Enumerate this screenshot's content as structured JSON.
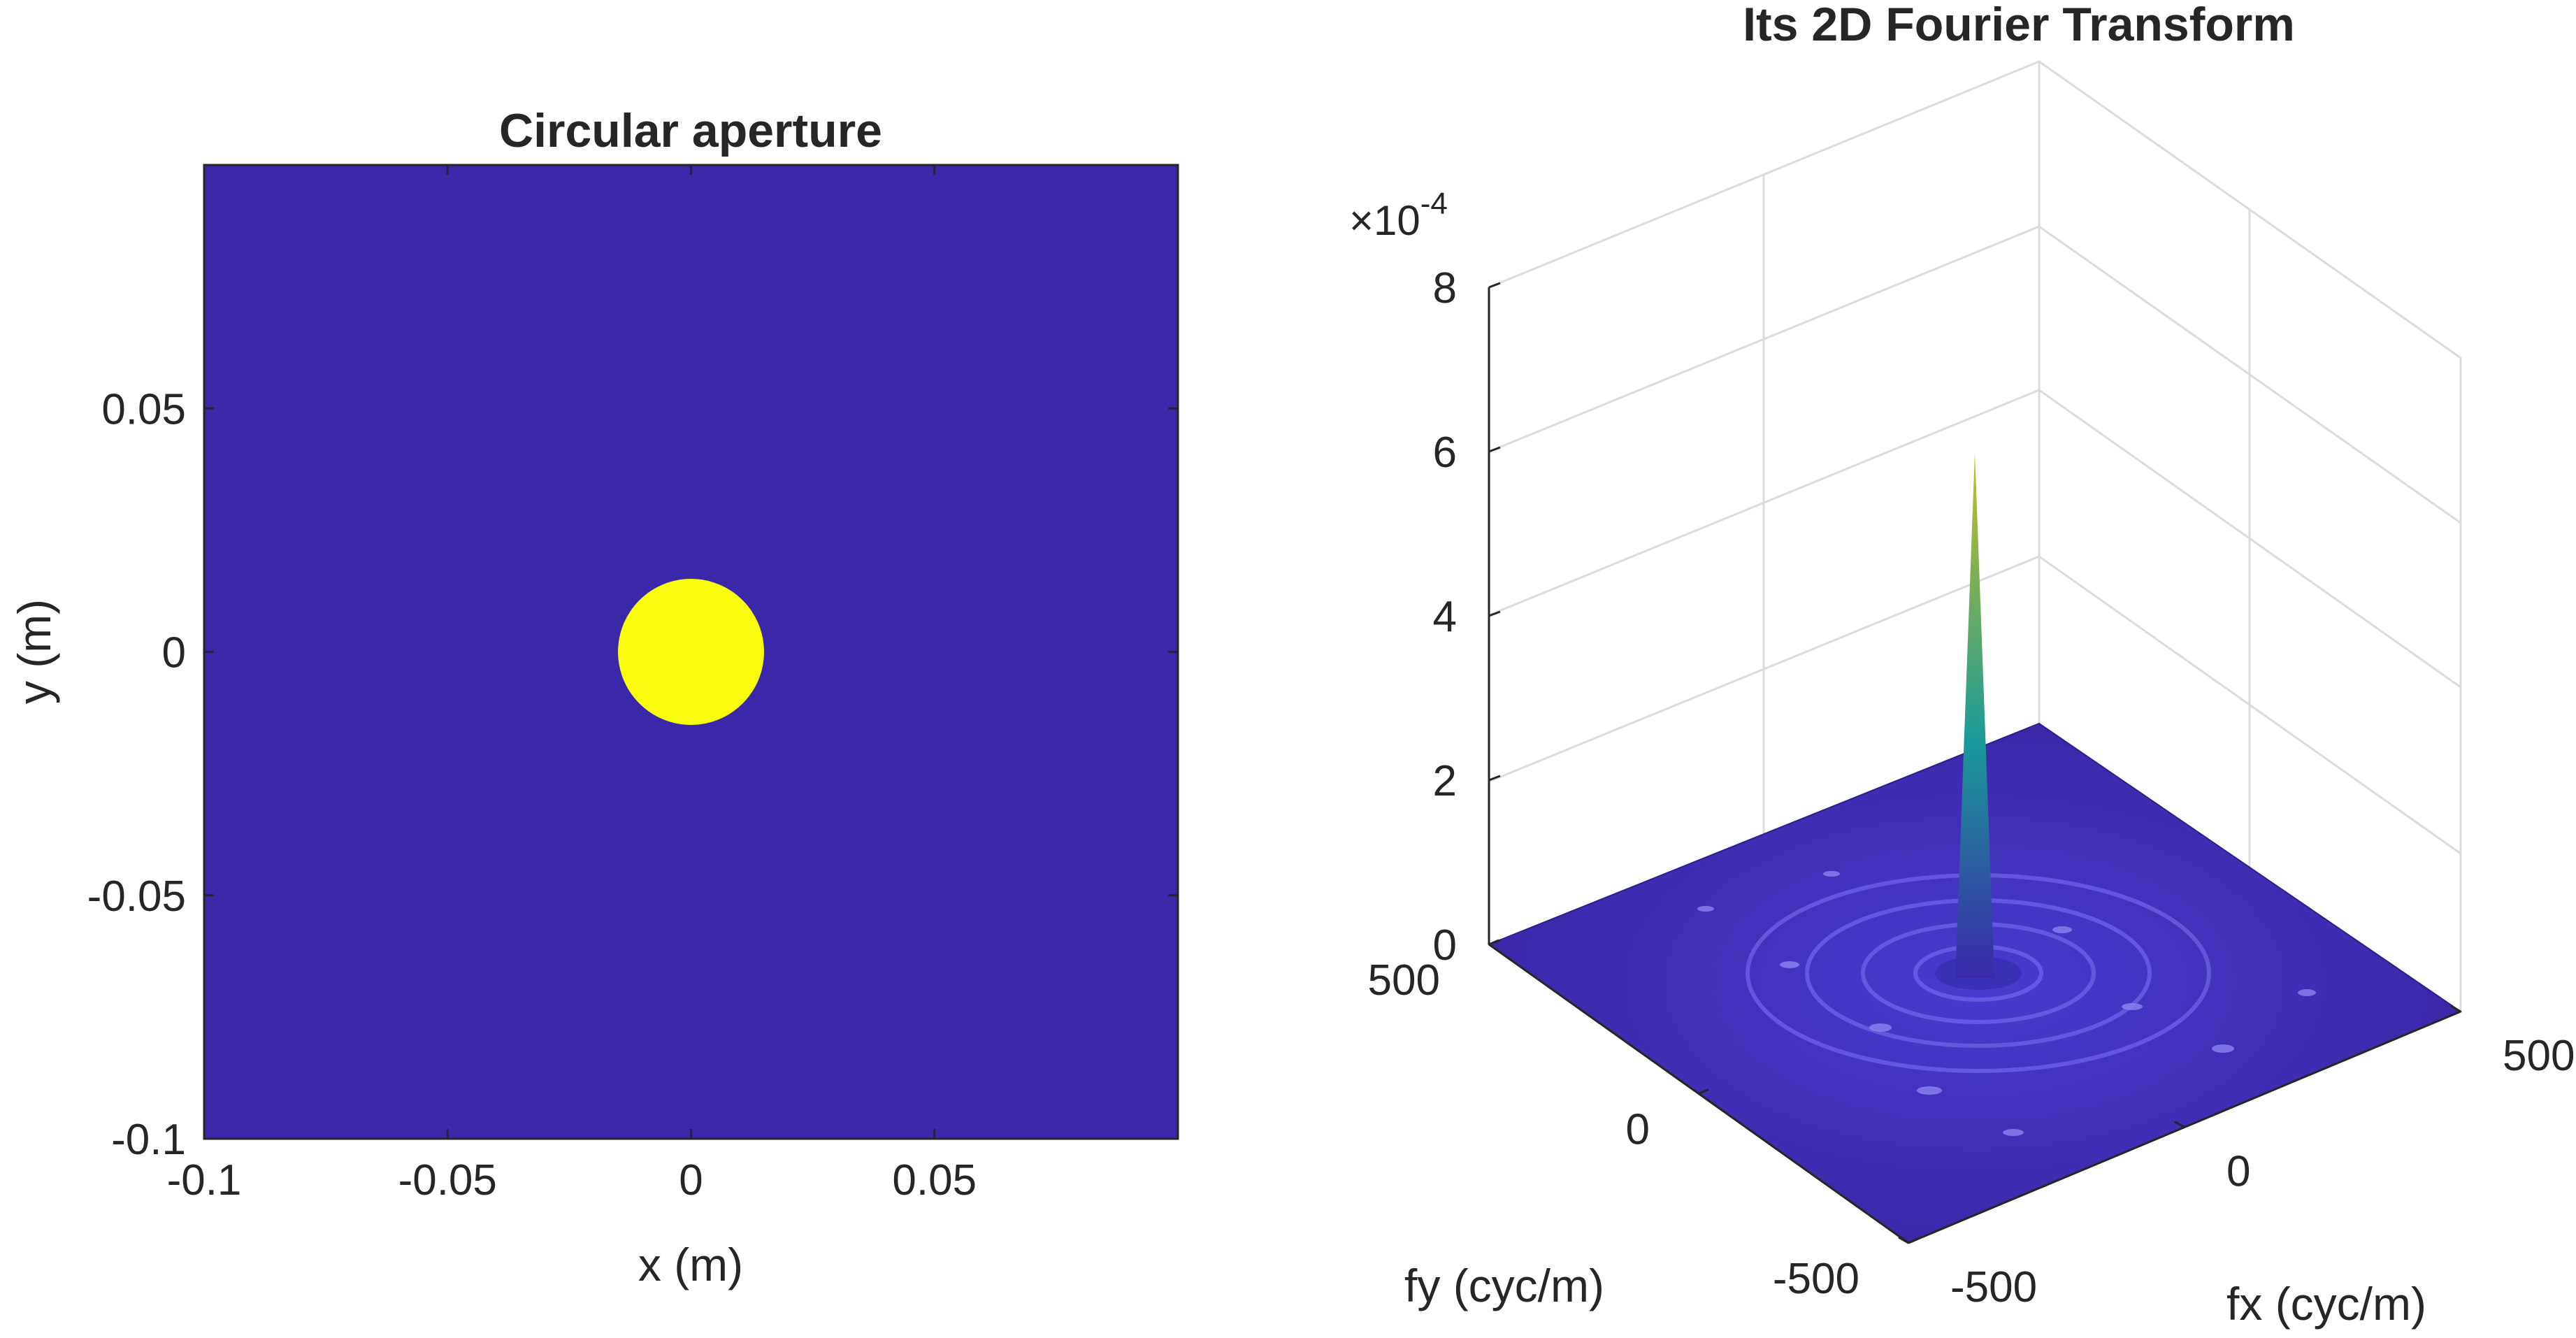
{
  "chart_data": [
    {
      "type": "heatmap",
      "title": "Circular aperture",
      "xlabel": "x (m)",
      "ylabel": "y (m)",
      "xlim": [
        -0.1,
        0.1
      ],
      "ylim": [
        -0.1,
        0.1
      ],
      "xticks": [
        -0.1,
        -0.05,
        0,
        0.05
      ],
      "xticklabels": [
        "-0.1",
        "-0.05",
        "0",
        "0.05"
      ],
      "yticks": [
        -0.1,
        -0.05,
        0,
        0.05
      ],
      "yticklabels": [
        "-0.1",
        "-0.05",
        "0",
        "0.05"
      ],
      "aperture": {
        "center": [
          0,
          0
        ],
        "radius": 0.015,
        "value": 1
      },
      "background_value": 0,
      "colors": {
        "background": "#3a28a8",
        "aperture": "#f9fb0e"
      }
    },
    {
      "type": "surface",
      "title": "Its 2D Fourier Transform",
      "xlabel": "fx (cyc/m)",
      "ylabel": "fy (cyc/m)",
      "xlim": [
        -500,
        500
      ],
      "ylim": [
        -500,
        500
      ],
      "zlim": [
        0,
        8
      ],
      "z_exponent_label": "×10",
      "z_exponent": "-4",
      "xticks": [
        -500,
        0,
        500
      ],
      "xticklabels": [
        "-500",
        "0",
        "500"
      ],
      "yticks": [
        -500,
        0,
        500
      ],
      "yticklabels": [
        "-500",
        "0",
        "500"
      ],
      "zticks": [
        0,
        2,
        4,
        6,
        8
      ],
      "zticklabels": [
        "0",
        "2",
        "4",
        "6",
        "8"
      ],
      "peak": {
        "fx": 0,
        "fy": 0,
        "value": 6.4
      },
      "grid": true,
      "colors": {
        "low": "#3a28a8",
        "mid": "#1a9a9a",
        "high": "#c8c020"
      }
    }
  ]
}
